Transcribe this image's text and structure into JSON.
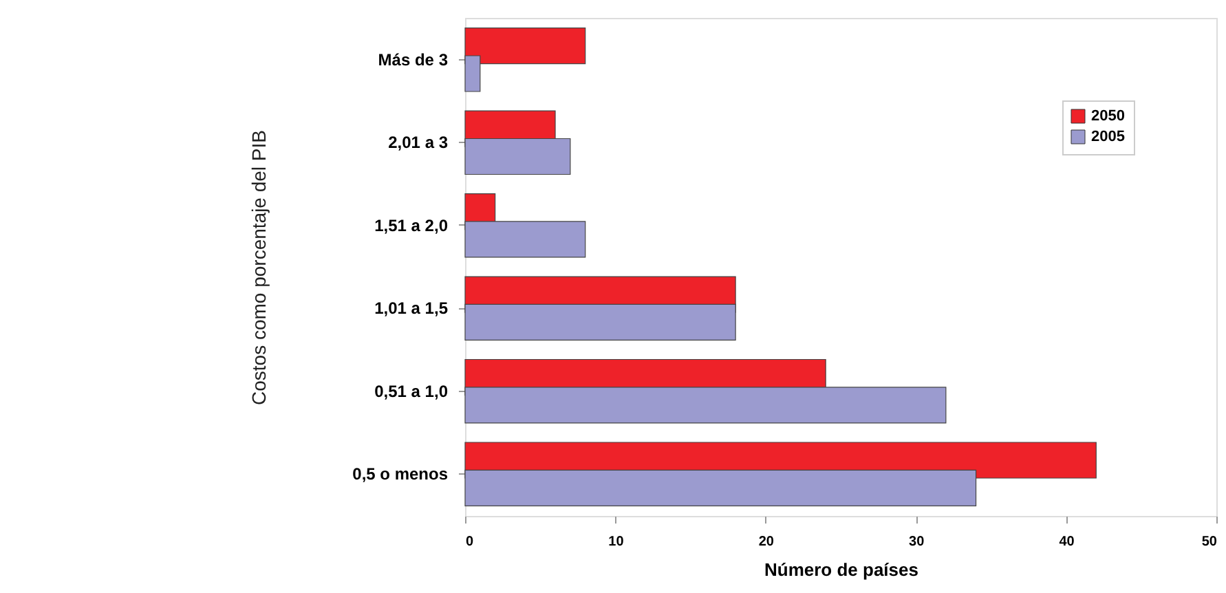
{
  "chart_data": {
    "type": "bar",
    "orientation": "horizontal",
    "categories": [
      "Más de 3",
      "2,01 a 3",
      "1,51 a 2,0",
      "1,01 a 1,5",
      "0,51 a 1,0",
      "0,5 o menos"
    ],
    "series": [
      {
        "name": "2050",
        "color": "#ee2229",
        "values": [
          8,
          6,
          2,
          18,
          24,
          42
        ]
      },
      {
        "name": "2005",
        "color": "#9b9bcf",
        "values": [
          1,
          7,
          8,
          18,
          32,
          34
        ]
      }
    ],
    "xlabel": "Número de países",
    "ylabel": "Costos como porcentaje del PIB",
    "xlim": [
      0,
      50
    ],
    "xticks": [
      0,
      10,
      20,
      30,
      40,
      50
    ],
    "grid": false,
    "legend": "top right"
  }
}
